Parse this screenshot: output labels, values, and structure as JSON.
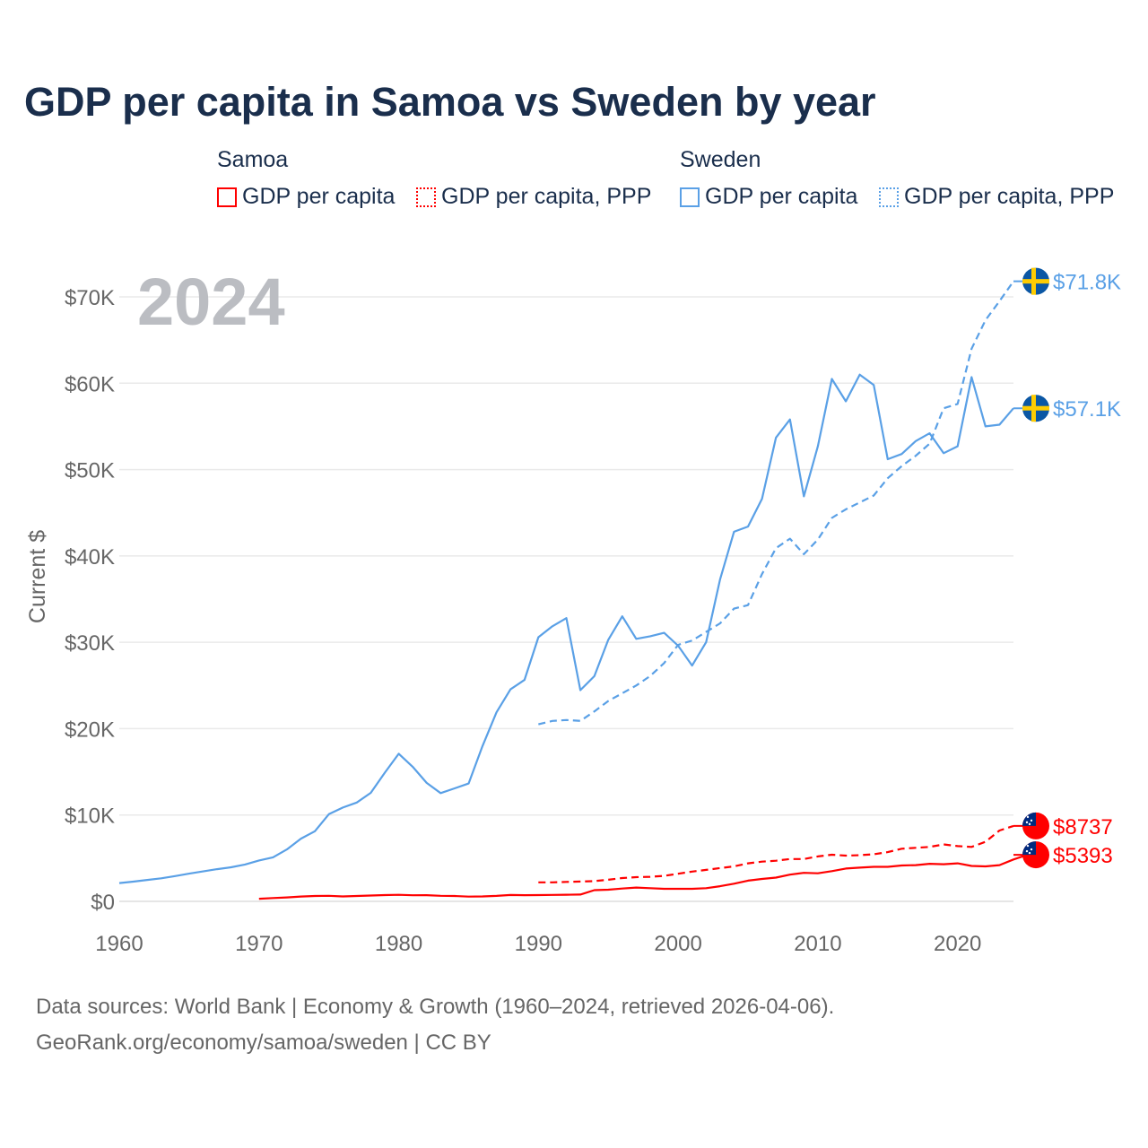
{
  "title": "GDP per capita in Samoa vs Sweden by year",
  "legend": {
    "groups": [
      {
        "name": "Samoa",
        "items": [
          "GDP per capita",
          "GDP per capita, PPP"
        ],
        "color": "#ff0000"
      },
      {
        "name": "Sweden",
        "items": [
          "GDP per capita",
          "GDP per capita, PPP"
        ],
        "color": "#5aa0e6"
      }
    ]
  },
  "footer": {
    "line1": "Data sources: World Bank | Economy & Growth (1960–2024, retrieved 2026-04-06).",
    "line2": "GeoRank.org/economy/samoa/sweden | CC BY"
  },
  "chart_data": {
    "type": "line",
    "title": "GDP per capita in Samoa vs Sweden by year",
    "ylabel": "Current $",
    "xlabel": "",
    "year_label": "2024",
    "xlim": [
      1960,
      2024
    ],
    "ylim": [
      0,
      70000
    ],
    "xticks": [
      1960,
      1970,
      1980,
      1990,
      2000,
      2010,
      2020
    ],
    "yticks": [
      {
        "v": 0,
        "l": "$0"
      },
      {
        "v": 10000,
        "l": "$10K"
      },
      {
        "v": 20000,
        "l": "$20K"
      },
      {
        "v": 30000,
        "l": "$30K"
      },
      {
        "v": 40000,
        "l": "$40K"
      },
      {
        "v": 50000,
        "l": "$50K"
      },
      {
        "v": 60000,
        "l": "$60K"
      },
      {
        "v": 70000,
        "l": "$70K"
      }
    ],
    "series": [
      {
        "name": "Sweden GDP per capita",
        "country": "Sweden",
        "color": "#5aa0e6",
        "dash": false,
        "start": 1960,
        "end_label": "$57.1K",
        "values": [
          2114,
          2289,
          2481,
          2665,
          2927,
          3211,
          3469,
          3728,
          3950,
          4273,
          4739,
          5101,
          6013,
          7255,
          8122,
          10094,
          10861,
          11443,
          12567,
          14890,
          17100,
          15590,
          13720,
          12540,
          13090,
          13650,
          17990,
          21890,
          24550,
          25640,
          30590,
          31850,
          32800,
          24460,
          26080,
          30280,
          33010,
          30400,
          30700,
          31100,
          29600,
          27300,
          30000,
          37300,
          42800,
          43400,
          46600,
          53700,
          55800,
          46900,
          52700,
          60500,
          57900,
          61000,
          59800,
          51200,
          51800,
          53300,
          54200,
          51900,
          52700,
          60700,
          55000,
          55200,
          57100
        ]
      },
      {
        "name": "Sweden GDP per capita, PPP",
        "country": "Sweden",
        "color": "#5aa0e6",
        "dash": true,
        "start": 1990,
        "end_label": "$71.8K",
        "values": [
          20500,
          20900,
          21000,
          20900,
          22000,
          23200,
          24100,
          25000,
          26100,
          27600,
          29700,
          30200,
          31200,
          32200,
          33900,
          34300,
          37900,
          40900,
          42000,
          40200,
          41900,
          44400,
          45400,
          46200,
          47000,
          49000,
          50400,
          51600,
          53000,
          57100,
          57600,
          64000,
          67300,
          69500,
          71800
        ]
      },
      {
        "name": "Samoa GDP per capita",
        "country": "Samoa",
        "color": "#ff0000",
        "dash": false,
        "start": 1970,
        "end_label": "$5393",
        "values": [
          300,
          380,
          460,
          560,
          620,
          640,
          570,
          620,
          670,
          730,
          760,
          710,
          720,
          640,
          620,
          550,
          570,
          630,
          740,
          720,
          730,
          750,
          770,
          790,
          1300,
          1350,
          1480,
          1600,
          1530,
          1450,
          1450,
          1450,
          1530,
          1750,
          2050,
          2400,
          2600,
          2750,
          3100,
          3300,
          3250,
          3500,
          3800,
          3900,
          4000,
          4000,
          4150,
          4200,
          4350,
          4300,
          4400,
          4100,
          4050,
          4200,
          4850,
          5393
        ]
      },
      {
        "name": "Samoa GDP per capita, PPP",
        "country": "Samoa",
        "color": "#ff0000",
        "dash": true,
        "start": 1990,
        "end_label": "$8737",
        "values": [
          2200,
          2200,
          2250,
          2300,
          2350,
          2500,
          2700,
          2800,
          2850,
          2950,
          3200,
          3450,
          3650,
          3850,
          4050,
          4400,
          4600,
          4700,
          4900,
          4900,
          5200,
          5400,
          5300,
          5350,
          5450,
          5700,
          6100,
          6200,
          6300,
          6600,
          6400,
          6300,
          6900,
          8200,
          8737
        ]
      }
    ]
  }
}
